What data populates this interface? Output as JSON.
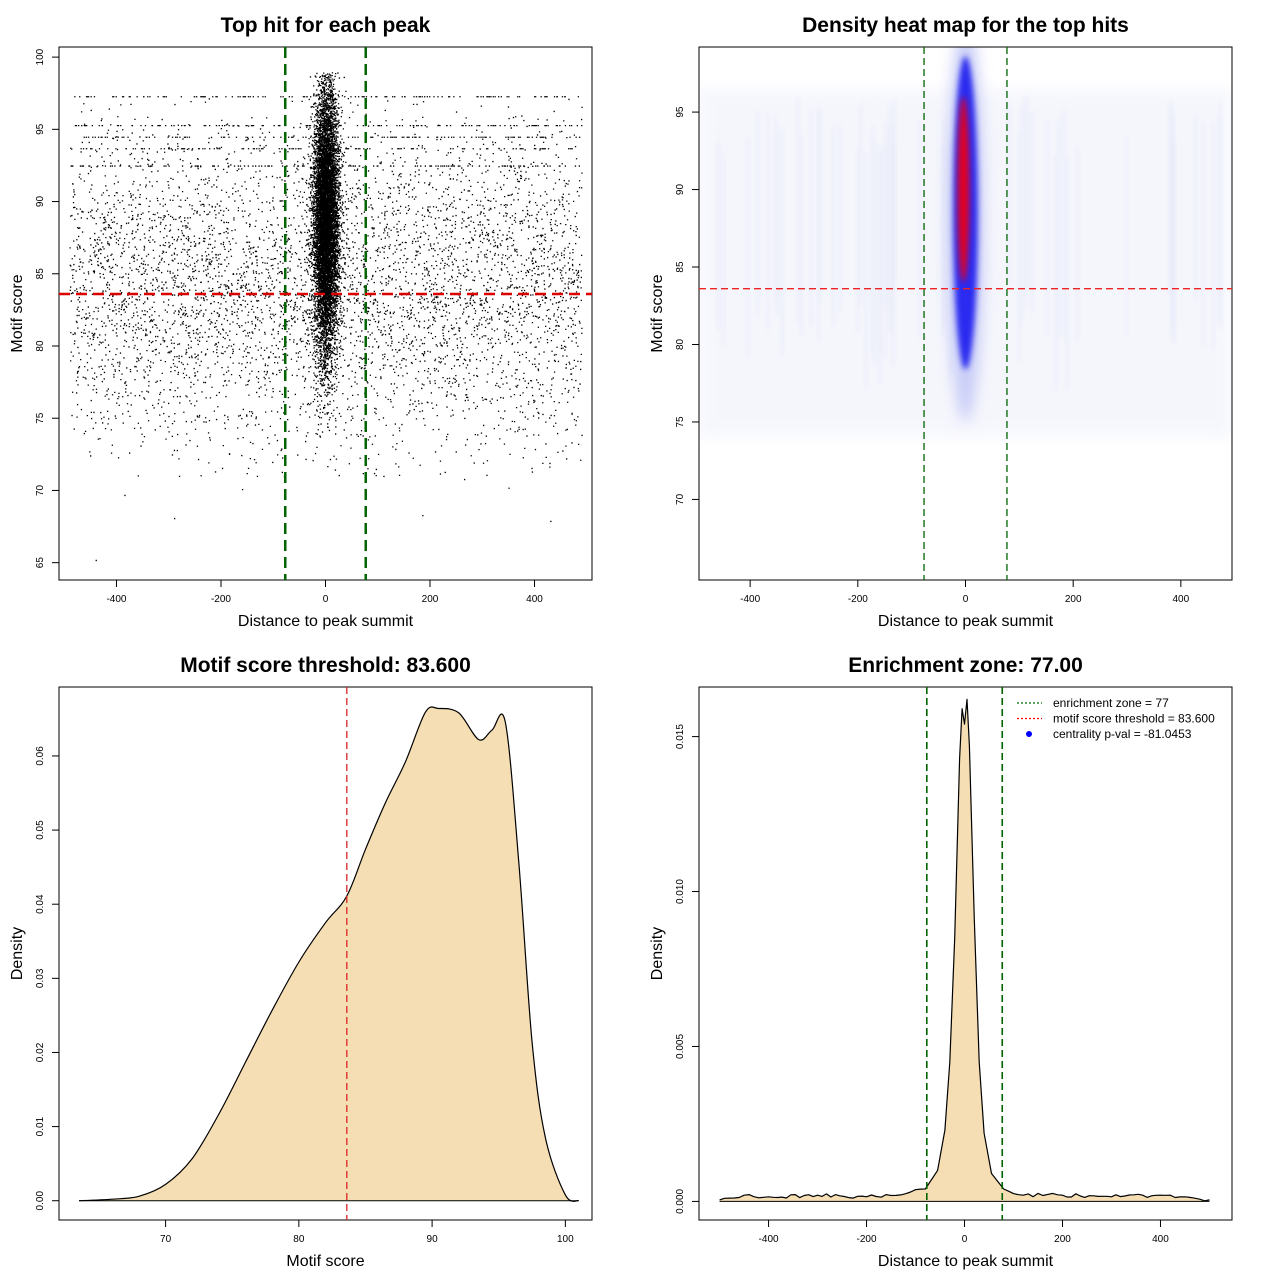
{
  "chart_data": [
    {
      "type": "scatter",
      "title": "Top hit for each peak",
      "xlabel": "Distance to peak summit",
      "ylabel": "Motif score",
      "xlim": [
        -510,
        510
      ],
      "ylim": [
        63.8,
        100.7
      ],
      "xticks": [
        -400,
        -200,
        0,
        200,
        400
      ],
      "yticks": [
        65,
        70,
        75,
        80,
        85,
        90,
        95,
        100
      ],
      "vlines": [
        -77,
        77
      ],
      "hline": 83.6,
      "points_description": "dense central column of points at distance -40..40, score 73..99; sparse background points across -490..490, score 70..97; horizontal streaks near scores 92.5, 93.7, 94.5, 95.3, 97.3",
      "dense_region": {
        "x": [
          -40,
          40
        ],
        "y": [
          73,
          99
        ]
      },
      "background_region": {
        "x": [
          -490,
          490
        ],
        "y": [
          70,
          97
        ]
      },
      "streak_scores": [
        92.5,
        93.7,
        94.5,
        95.3,
        97.3
      ],
      "outliers": [
        [
          -440,
          65.2
        ],
        [
          -290,
          68.1
        ],
        [
          -160,
          70.1
        ],
        [
          185,
          68.3
        ],
        [
          430,
          67.9
        ],
        [
          -385,
          69.7
        ],
        [
          350,
          70.2
        ],
        [
          265,
          70.8
        ]
      ]
    },
    {
      "type": "heatmap",
      "title": "Density heat map for the top hits",
      "xlabel": "Distance to peak summit",
      "ylabel": "Motif score",
      "xlim": [
        -495,
        495
      ],
      "ylim": [
        64.8,
        99.2
      ],
      "xticks": [
        -400,
        -200,
        0,
        200,
        400
      ],
      "yticks": [
        70,
        75,
        80,
        85,
        90,
        95
      ],
      "vlines": [
        -77,
        77
      ],
      "hline": 83.6,
      "color_scale": [
        "#ffffff",
        "#0000ff",
        "#ff0000"
      ],
      "hotspot": {
        "x_center": 0,
        "x_halfwidth": 20,
        "y_range": [
          78,
          97
        ],
        "peak_y": 90
      }
    },
    {
      "type": "area",
      "title": "Motif score threshold: 83.600",
      "xlabel": "Motif score",
      "ylabel": "Density",
      "xlim": [
        62,
        102
      ],
      "ylim": [
        -0.0026,
        0.0693
      ],
      "xticks": [
        70,
        80,
        90,
        100
      ],
      "yticks": [
        0.0,
        0.01,
        0.02,
        0.03,
        0.04,
        0.05,
        0.06
      ],
      "ytick_labels": [
        "0.00",
        "0.01",
        "0.02",
        "0.03",
        "0.04",
        "0.05",
        "0.06"
      ],
      "vline": 83.6,
      "fill": "#f5deb3",
      "x": [
        63.5,
        66,
        68,
        70,
        72,
        74,
        76,
        78,
        80,
        82,
        83.6,
        85,
        86.5,
        88,
        89.5,
        90.5,
        92,
        93.5,
        94.5,
        95.5,
        96.5,
        97.5,
        98.5,
        100,
        101
      ],
      "values": [
        0.0,
        0.0002,
        0.0006,
        0.0022,
        0.0057,
        0.0117,
        0.0187,
        0.0257,
        0.0322,
        0.0375,
        0.0411,
        0.0474,
        0.0537,
        0.0592,
        0.0659,
        0.0664,
        0.0658,
        0.0622,
        0.0635,
        0.0645,
        0.0458,
        0.0215,
        0.0085,
        0.0008,
        0.0
      ]
    },
    {
      "type": "area",
      "title": "Enrichment zone: 77.00",
      "xlabel": "Distance to peak summit",
      "ylabel": "Density",
      "xlim": [
        -542,
        546
      ],
      "ylim": [
        -0.0006,
        0.0166
      ],
      "xticks": [
        -400,
        -200,
        0,
        200,
        400
      ],
      "yticks": [
        0.0,
        0.005,
        0.01,
        0.015
      ],
      "ytick_labels": [
        "0.000",
        "0.005",
        "0.010",
        "0.015"
      ],
      "vlines": [
        -77,
        77
      ],
      "fill": "#f5deb3",
      "x": [
        -500,
        -450,
        -400,
        -300,
        -200,
        -120,
        -80,
        -55,
        -40,
        -30,
        -20,
        -10,
        -5,
        0,
        5,
        10,
        20,
        30,
        40,
        55,
        80,
        120,
        200,
        300,
        400,
        450,
        500
      ],
      "values": [
        5e-05,
        0.0002,
        0.00015,
        0.0002,
        0.00015,
        0.00025,
        0.0004,
        0.001,
        0.0023,
        0.0045,
        0.0085,
        0.0143,
        0.0159,
        0.0154,
        0.0162,
        0.0147,
        0.0091,
        0.0045,
        0.0022,
        0.0009,
        0.0004,
        0.0002,
        0.0002,
        0.00015,
        0.0002,
        0.00015,
        5e-05
      ],
      "legend": {
        "placement": "top-right",
        "entries": [
          {
            "label": "enrichment zone = 77",
            "color": "#006400",
            "style": "dotted"
          },
          {
            "label": "motif score threshold = 83.600",
            "color": "#ff0000",
            "style": "dotted"
          },
          {
            "label": "centrality p-val = -81.0453",
            "color": "#0000ff",
            "style": "point"
          }
        ]
      }
    }
  ]
}
